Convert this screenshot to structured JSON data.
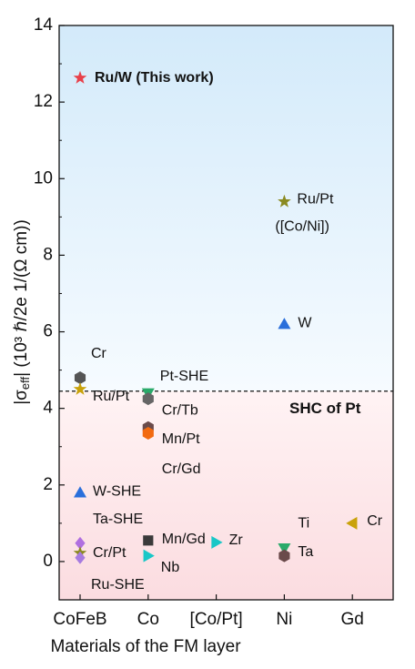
{
  "chart_data": {
    "type": "scatter",
    "xlabel": "Materials of the FM layer",
    "ylabel": [
      "|σ",
      "eff",
      "| (10³ ℏ/2e 1/(Ω cm))"
    ],
    "categories": [
      "CoFeB",
      "Co",
      "[Co/Pt]",
      "Ni",
      "Gd"
    ],
    "ylim": [
      -1,
      14
    ],
    "yticks": [
      0,
      2,
      4,
      6,
      8,
      10,
      12,
      14
    ],
    "yminor_ticks": [
      1,
      3,
      5,
      7,
      9,
      11,
      13
    ],
    "ref_line": {
      "value": 4.45,
      "label": "SHC of Pt"
    },
    "points": [
      {
        "label": "Ru/W (This work)",
        "category": "CoFeB",
        "value": 12.63,
        "marker": "star",
        "color": "#e8404a",
        "bold": true
      },
      {
        "label": "Cr",
        "category": "CoFeB",
        "value": 4.8,
        "marker": "hexagon",
        "color": "#555555"
      },
      {
        "label": "Ru/Pt",
        "category": "CoFeB",
        "value": 4.5,
        "marker": "star",
        "color": "#c9a20a"
      },
      {
        "label": "W-SHE",
        "category": "CoFeB",
        "value": 1.8,
        "marker": "triangle-up",
        "color": "#2a6fdb"
      },
      {
        "label": "Ta-SHE",
        "category": "CoFeB",
        "value": 0.48,
        "marker": "diamond",
        "color": "#b06fe0"
      },
      {
        "label": "Cr/Pt",
        "category": "CoFeB",
        "value": 0.22,
        "marker": "star",
        "color": "#8a8a20"
      },
      {
        "label": "Ru-SHE",
        "category": "CoFeB",
        "value": 0.1,
        "marker": "diamond",
        "color": "#a77be0"
      },
      {
        "label": "Pt-SHE",
        "category": "Co",
        "value": 4.4,
        "marker": "triangle-down",
        "color": "#2aaa6a"
      },
      {
        "label": "Cr/Tb",
        "category": "Co",
        "value": 4.25,
        "marker": "hexagon",
        "color": "#666666"
      },
      {
        "label": "Mn/Pt",
        "category": "Co",
        "value": 3.5,
        "marker": "hexagon",
        "color": "#6a4a4a"
      },
      {
        "label": "Cr/Gd",
        "category": "Co",
        "value": 3.35,
        "marker": "hexagon",
        "color": "#f26a10"
      },
      {
        "label": "Mn/Gd",
        "category": "Co",
        "value": 0.55,
        "marker": "square",
        "color": "#3a3a3a"
      },
      {
        "label": "Nb",
        "category": "Co",
        "value": 0.15,
        "marker": "triangle-right",
        "color": "#19c7c7"
      },
      {
        "label": "Zr",
        "category": "[Co/Pt]",
        "value": 0.5,
        "marker": "triangle-right",
        "color": "#19c7c7"
      },
      {
        "label": "Ru/Pt",
        "label2": "([Co/Ni])",
        "category": "Ni",
        "value": 9.4,
        "marker": "star",
        "color": "#8a8a20"
      },
      {
        "label": "W",
        "category": "Ni",
        "value": 6.2,
        "marker": "triangle-up",
        "color": "#2a6fdb"
      },
      {
        "label": "Ti",
        "category": "Ni",
        "value": 0.35,
        "marker": "triangle-down",
        "color": "#2aaa6a"
      },
      {
        "label": "Ta",
        "category": "Ni",
        "value": 0.15,
        "marker": "hexagon",
        "color": "#6a4a4a"
      },
      {
        "label": "Cr",
        "category": "Gd",
        "value": 1.0,
        "marker": "triangle-left",
        "color": "#c9a20a"
      }
    ]
  }
}
